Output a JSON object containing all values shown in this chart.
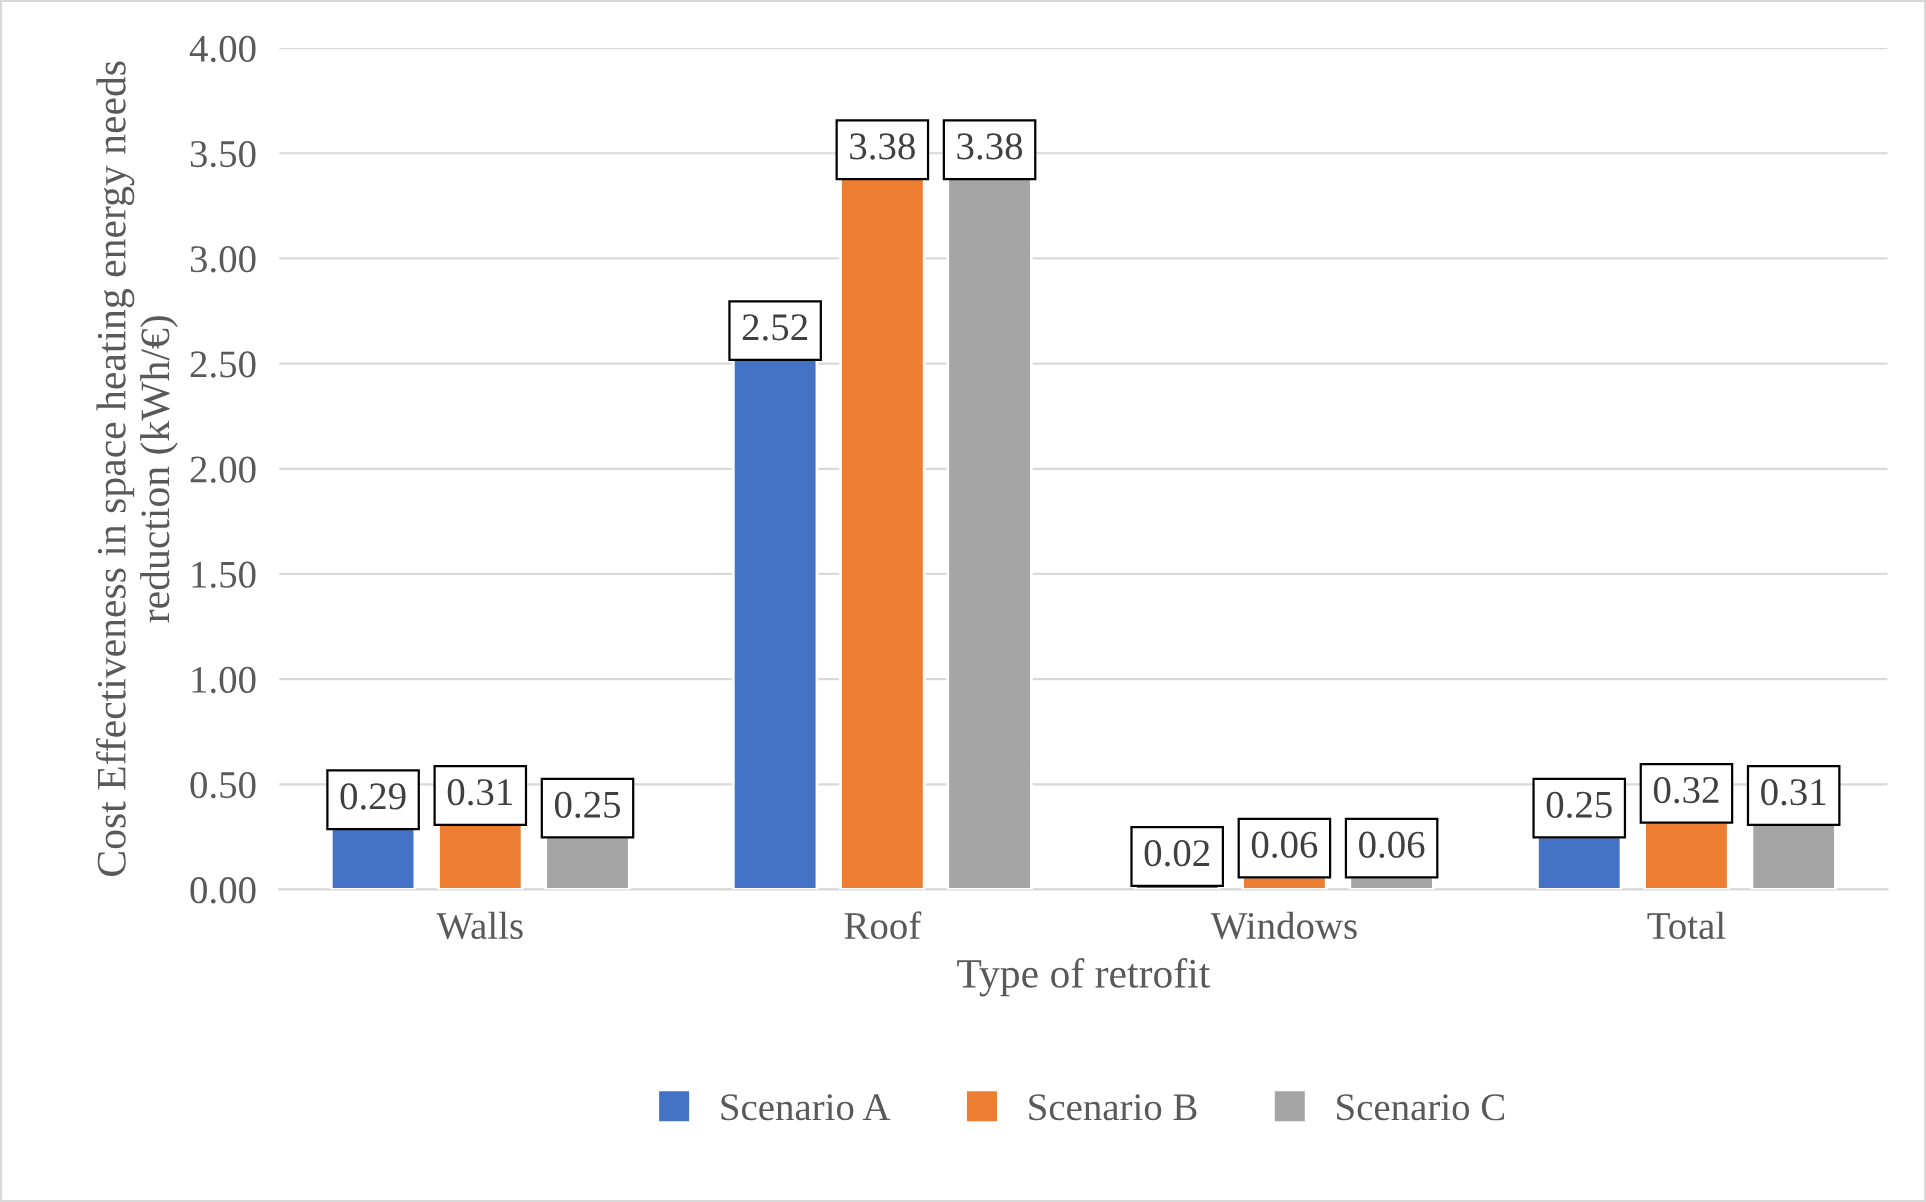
{
  "chart_data": {
    "type": "bar",
    "xlabel": "Type of retrofit",
    "ylabel": "Cost Effectiveness in space heating energy needs reduction (kWh/€)",
    "categories": [
      "Walls",
      "Roof",
      "Windows",
      "Total"
    ],
    "series": [
      {
        "name": "Scenario A",
        "color": "#4472c4",
        "values": [
          0.29,
          2.52,
          0.02,
          0.25
        ]
      },
      {
        "name": "Scenario B",
        "color": "#ed7d31",
        "values": [
          0.31,
          3.38,
          0.06,
          0.32
        ]
      },
      {
        "name": "Scenario C",
        "color": "#a5a5a5",
        "values": [
          0.25,
          3.38,
          0.06,
          0.31
        ]
      }
    ],
    "ylim": [
      0,
      4
    ],
    "yticks": [
      {
        "value": 0,
        "label": "0.00"
      },
      {
        "value": 0.5,
        "label": "0.50"
      },
      {
        "value": 1,
        "label": "1.00"
      },
      {
        "value": 1.5,
        "label": "1.50"
      },
      {
        "value": 2,
        "label": "2.00"
      },
      {
        "value": 2.5,
        "label": "2.50"
      },
      {
        "value": 3,
        "label": "3.00"
      },
      {
        "value": 3.5,
        "label": "3.50"
      },
      {
        "value": 4,
        "label": "4.00"
      }
    ],
    "grid": "y",
    "legend": "bottom",
    "data_labels": true
  }
}
